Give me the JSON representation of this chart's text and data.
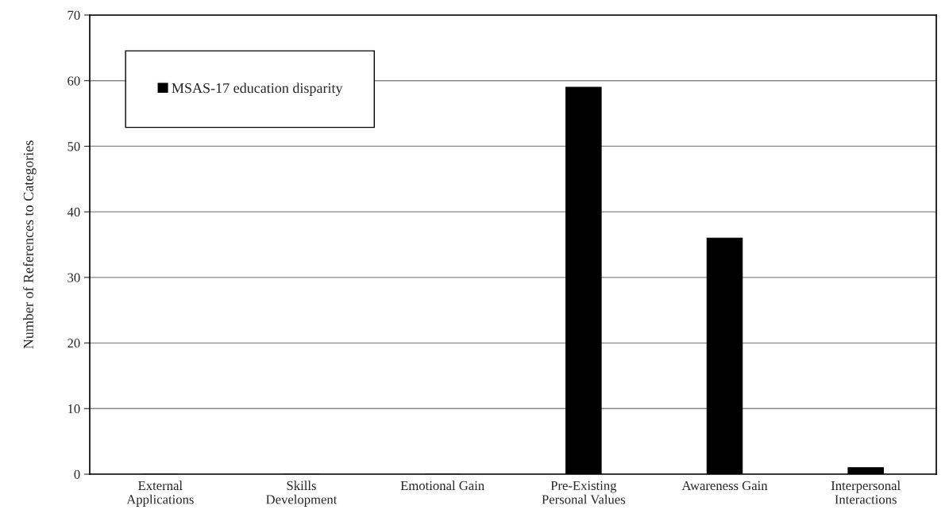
{
  "chart_data": {
    "type": "bar",
    "categories": [
      "External\nApplications",
      "Skills\nDevelopment",
      "Emotional Gain",
      "Pre-Existing\nPersonal Values",
      "Awareness Gain",
      "Interpersonal\nInteractions"
    ],
    "series": [
      {
        "name": "MSAS-17 education disparity",
        "color": "#000000",
        "values": [
          0,
          0,
          0,
          59,
          36,
          1
        ]
      }
    ],
    "ylabel": "Number of References to Categories",
    "ylim": [
      0,
      70
    ],
    "yticks": [
      0,
      10,
      20,
      30,
      40,
      50,
      60,
      70
    ],
    "grid": "y",
    "legend": "top left"
  }
}
